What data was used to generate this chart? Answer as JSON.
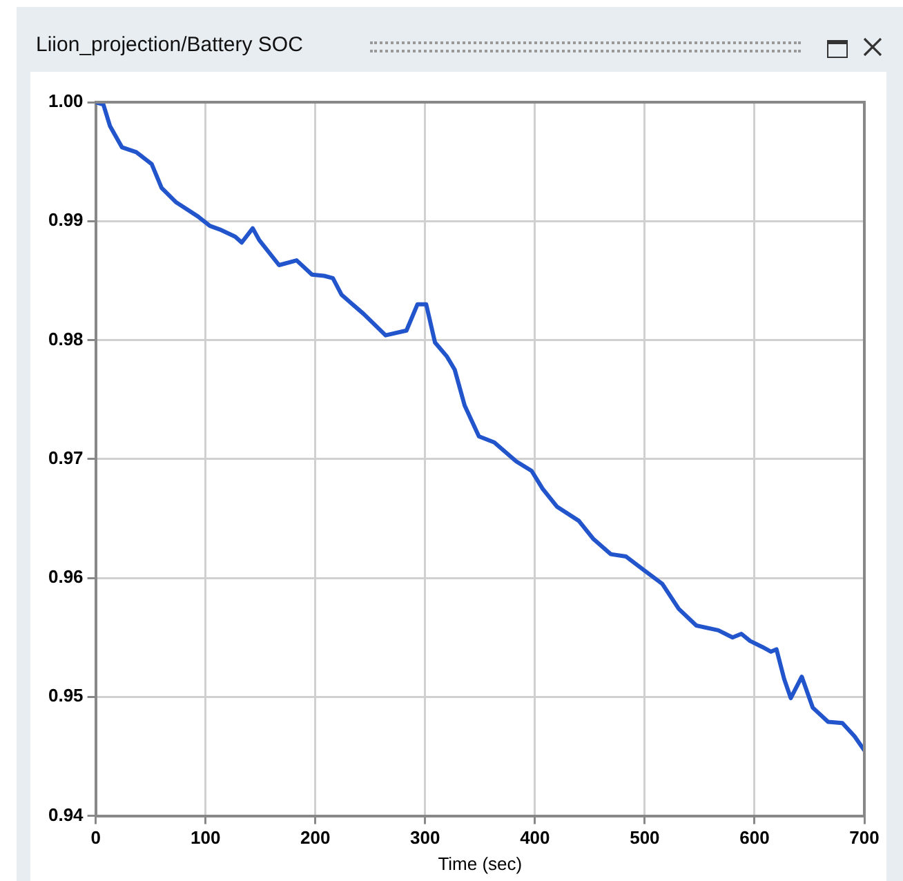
{
  "chart_data": {
    "type": "line",
    "title": "Liion_projection/Battery SOC",
    "xlabel": "Time (sec)",
    "x": [
      0,
      7,
      13,
      24,
      37,
      51,
      60,
      73,
      93,
      104,
      113,
      127,
      133,
      143,
      149,
      167,
      183,
      197,
      208,
      216,
      224,
      244,
      264,
      283,
      293,
      301,
      309,
      320,
      327,
      336,
      349,
      363,
      383,
      397,
      407,
      420,
      440,
      453,
      469,
      483,
      500,
      516,
      531,
      547,
      567,
      580,
      588,
      596,
      607,
      615,
      620,
      627,
      633,
      643,
      653,
      667,
      680,
      691,
      700
    ],
    "series": [
      {
        "color": "#2255cc",
        "values": [
          1.0,
          0.9998,
          0.998,
          0.9962,
          0.9958,
          0.9948,
          0.9928,
          0.9916,
          0.9904,
          0.9896,
          0.9893,
          0.9887,
          0.9882,
          0.9894,
          0.9884,
          0.9863,
          0.9867,
          0.9855,
          0.9854,
          0.9852,
          0.9838,
          0.9822,
          0.9804,
          0.9808,
          0.983,
          0.983,
          0.9798,
          0.9786,
          0.9775,
          0.9745,
          0.9719,
          0.9714,
          0.9698,
          0.969,
          0.9675,
          0.966,
          0.9648,
          0.9633,
          0.962,
          0.9618,
          0.9606,
          0.9595,
          0.9574,
          0.956,
          0.9556,
          0.955,
          0.9553,
          0.9547,
          0.9542,
          0.9538,
          0.954,
          0.9515,
          0.9499,
          0.9517,
          0.9491,
          0.9479,
          0.9478,
          0.9467,
          0.9455
        ]
      }
    ],
    "xlim": [
      0,
      700
    ],
    "xticks": [
      0,
      100,
      200,
      300,
      400,
      500,
      600,
      700
    ],
    "ylim": [
      0.94,
      1.0
    ],
    "yticks": [
      0.94,
      0.95,
      0.96,
      0.97,
      0.98,
      0.99,
      {
        "value": 1.0,
        "label": "1.00"
      }
    ],
    "grid": true,
    "legend": false,
    "marker": "none",
    "line_style": "solid"
  }
}
